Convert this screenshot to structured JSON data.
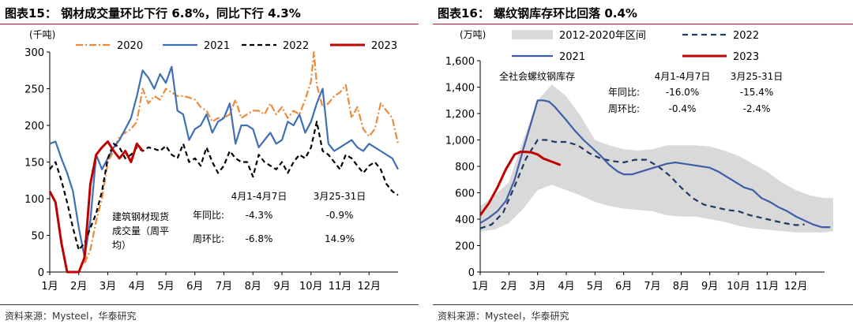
{
  "left": {
    "title": "图表15：  钢材成交量环比下行 6.8%，同比下行 4.3%",
    "source": "资料来源：Mysteel，华泰研究",
    "chart_data": {
      "type": "line",
      "unit": "(千吨)",
      "ylim": [
        0,
        300
      ],
      "yticks": [
        "0",
        "50",
        "100",
        "150",
        "200",
        "250",
        "300"
      ],
      "months": [
        "1月",
        "2月",
        "3月",
        "4月",
        "5月",
        "6月",
        "7月",
        "8月",
        "9月",
        "10月",
        "11月",
        "12月"
      ],
      "legend": [
        "2020",
        "2021",
        "2022",
        "2023"
      ],
      "series": [
        {
          "name": "2020",
          "color": "#ec8a3c",
          "dash": "9,3,2,3",
          "x": [
            2.2,
            2.4,
            2.6,
            2.8,
            3.0,
            3.2,
            3.4,
            3.6,
            3.8,
            4.0,
            4.2,
            4.4,
            4.6,
            4.8,
            5.0,
            5.2,
            5.4,
            5.6,
            5.8,
            6.0,
            6.2,
            6.4,
            6.6,
            6.8,
            7.0,
            7.2,
            7.4,
            7.6,
            7.8,
            8.0,
            8.2,
            8.4,
            8.6,
            8.8,
            9.0,
            9.2,
            9.4,
            9.6,
            9.8,
            10.0,
            10.1,
            10.2,
            10.4,
            10.6,
            10.8,
            11.0,
            11.2,
            11.4,
            11.6,
            11.8,
            12.0,
            12.2,
            12.4,
            12.6,
            12.8,
            13.0
          ],
          "y": [
            12,
            30,
            70,
            100,
            150,
            165,
            185,
            190,
            195,
            205,
            250,
            230,
            240,
            235,
            250,
            245,
            240,
            240,
            238,
            235,
            225,
            220,
            205,
            210,
            210,
            215,
            235,
            210,
            215,
            220,
            220,
            215,
            230,
            215,
            225,
            210,
            220,
            215,
            235,
            260,
            300,
            255,
            225,
            230,
            240,
            245,
            255,
            210,
            225,
            195,
            185,
            195,
            230,
            220,
            210,
            175
          ]
        },
        {
          "name": "2021",
          "color": "#3f6fb5",
          "dash": "",
          "x": [
            1.0,
            1.2,
            1.4,
            1.6,
            1.8,
            2.0,
            2.2,
            2.4,
            2.6,
            2.8,
            3.0,
            3.2,
            3.4,
            3.6,
            3.8,
            4.0,
            4.2,
            4.4,
            4.6,
            4.8,
            5.0,
            5.2,
            5.4,
            5.6,
            5.8,
            6.0,
            6.2,
            6.4,
            6.6,
            6.8,
            7.0,
            7.2,
            7.4,
            7.6,
            7.8,
            8.0,
            8.2,
            8.4,
            8.6,
            8.8,
            9.0,
            9.2,
            9.4,
            9.6,
            9.8,
            10.0,
            10.2,
            10.4,
            10.6,
            10.8,
            11.0,
            11.2,
            11.4,
            11.6,
            11.8,
            12.0,
            12.2,
            12.4,
            12.6,
            12.8,
            13.0
          ],
          "y": [
            175,
            178,
            155,
            135,
            110,
            60,
            20,
            70,
            160,
            140,
            155,
            170,
            180,
            195,
            210,
            240,
            275,
            265,
            250,
            270,
            258,
            280,
            220,
            215,
            180,
            195,
            200,
            215,
            190,
            205,
            210,
            230,
            175,
            200,
            200,
            195,
            170,
            180,
            190,
            175,
            180,
            205,
            200,
            215,
            190,
            205,
            230,
            250,
            175,
            165,
            170,
            175,
            180,
            170,
            165,
            175,
            170,
            165,
            160,
            155,
            140
          ]
        },
        {
          "name": "2022",
          "color": "#000000",
          "dash": "6,4",
          "x": [
            1.0,
            1.2,
            1.4,
            1.6,
            1.8,
            2.0,
            2.2,
            2.4,
            2.6,
            2.8,
            3.0,
            3.2,
            3.4,
            3.6,
            3.8,
            4.0,
            4.2,
            4.4,
            4.6,
            4.8,
            5.0,
            5.2,
            5.4,
            5.6,
            5.8,
            6.0,
            6.2,
            6.4,
            6.6,
            6.8,
            7.0,
            7.2,
            7.4,
            7.6,
            7.8,
            8.0,
            8.2,
            8.4,
            8.6,
            8.8,
            9.0,
            9.2,
            9.4,
            9.6,
            9.8,
            10.0,
            10.2,
            10.4,
            10.6,
            10.8,
            11.0,
            11.2,
            11.4,
            11.6,
            11.8,
            12.0,
            12.2,
            12.4,
            12.6,
            12.8,
            13.0
          ],
          "y": [
            140,
            150,
            125,
            95,
            60,
            30,
            40,
            60,
            80,
            110,
            155,
            175,
            170,
            155,
            160,
            170,
            165,
            170,
            168,
            165,
            172,
            160,
            155,
            175,
            150,
            155,
            145,
            170,
            150,
            135,
            145,
            165,
            155,
            150,
            150,
            130,
            160,
            150,
            145,
            140,
            150,
            135,
            150,
            160,
            155,
            170,
            205,
            165,
            160,
            150,
            140,
            160,
            155,
            145,
            135,
            145,
            150,
            140,
            120,
            110,
            105
          ]
        },
        {
          "name": "2023",
          "color": "#c00000",
          "dash": "",
          "x": [
            1.0,
            1.2,
            1.4,
            1.6,
            1.8,
            2.0,
            2.2,
            2.4,
            2.6,
            2.8,
            3.0,
            3.2,
            3.4,
            3.6,
            3.8,
            4.0,
            4.2
          ],
          "y": [
            110,
            95,
            40,
            0,
            0,
            0,
            20,
            120,
            160,
            170,
            178,
            165,
            155,
            165,
            150,
            175,
            165
          ]
        }
      ],
      "annotation": {
        "label": "建筑钢材现货\n成交量（周平\n均）",
        "col1_header": "4月1-4月7日",
        "col2_header": "3月25-31日",
        "rows": [
          {
            "label": "年同比:",
            "v1": "-4.3%",
            "v2": "-0.9%"
          },
          {
            "label": "周环比:",
            "v1": "-6.8%",
            "v2": "14.9%"
          }
        ]
      }
    }
  },
  "right": {
    "title": "图表16：  螺纹钢库存环比回落 0.4%",
    "source": "资料来源：Mysteel，华泰研究",
    "chart_data": {
      "type": "area+line",
      "unit": "(万吨)",
      "ylim": [
        0,
        1600
      ],
      "yticks": [
        "0",
        "200",
        "400",
        "600",
        "800",
        "1,000",
        "1,200",
        "1,400",
        "1,600"
      ],
      "months": [
        "1月",
        "2月",
        "3月",
        "4月",
        "5月",
        "6月",
        "7月",
        "8月",
        "9月",
        "10月",
        "11月",
        "12月"
      ],
      "legend": [
        "2012-2020年区间",
        "2022",
        "2021",
        "2023"
      ],
      "band": {
        "name": "2012-2020年区间",
        "color": "#d9d9d9",
        "x": [
          1.0,
          1.5,
          2.0,
          2.5,
          3.0,
          3.5,
          4.0,
          4.5,
          5.0,
          5.5,
          6.0,
          6.5,
          7.0,
          7.5,
          8.0,
          8.5,
          9.0,
          9.5,
          10.0,
          10.5,
          11.0,
          11.5,
          12.0,
          12.5,
          13.0,
          13.3
        ],
        "upper": [
          500,
          580,
          680,
          1000,
          1300,
          1420,
          1330,
          1180,
          1000,
          960,
          930,
          920,
          930,
          960,
          960,
          960,
          950,
          920,
          880,
          820,
          760,
          680,
          620,
          580,
          560,
          560
        ],
        "lower": [
          310,
          320,
          370,
          480,
          620,
          660,
          620,
          580,
          530,
          500,
          480,
          470,
          460,
          430,
          420,
          420,
          400,
          380,
          350,
          330,
          320,
          310,
          300,
          300,
          300,
          310
        ]
      },
      "series": [
        {
          "name": "2022",
          "color": "#1f3864",
          "dash": "7,5",
          "x": [
            1.0,
            1.4,
            1.8,
            2.2,
            2.6,
            3.0,
            3.3,
            3.6,
            4.0,
            4.4,
            4.8,
            5.2,
            5.6,
            6.0,
            6.4,
            6.8,
            7.2,
            7.6,
            8.0,
            8.4,
            8.8,
            9.2,
            9.6,
            10.0,
            10.4,
            10.8,
            11.2,
            11.6,
            12.0,
            12.3
          ],
          "y": [
            330,
            360,
            450,
            650,
            860,
            1000,
            1000,
            985,
            985,
            960,
            900,
            860,
            840,
            830,
            850,
            850,
            800,
            730,
            640,
            560,
            510,
            490,
            470,
            460,
            430,
            410,
            390,
            370,
            355,
            360
          ]
        },
        {
          "name": "2021",
          "color": "#3f5ea8",
          "dash": "",
          "x": [
            1.0,
            1.3,
            1.6,
            1.9,
            2.2,
            2.5,
            2.8,
            3.0,
            3.2,
            3.4,
            3.6,
            3.8,
            4.0,
            4.3,
            4.6,
            4.9,
            5.2,
            5.5,
            5.8,
            6.0,
            6.3,
            6.6,
            6.9,
            7.2,
            7.5,
            7.8,
            8.1,
            8.4,
            8.7,
            9.0,
            9.3,
            9.6,
            9.9,
            10.2,
            10.5,
            10.8,
            11.1,
            11.4,
            11.7,
            12.0,
            12.3,
            12.6,
            12.9,
            13.2
          ],
          "y": [
            370,
            410,
            460,
            540,
            700,
            930,
            1150,
            1300,
            1300,
            1290,
            1250,
            1200,
            1150,
            1070,
            1000,
            940,
            880,
            810,
            760,
            740,
            740,
            760,
            780,
            800,
            820,
            830,
            820,
            810,
            800,
            790,
            760,
            720,
            680,
            640,
            620,
            560,
            530,
            490,
            460,
            420,
            390,
            360,
            340,
            340
          ]
        },
        {
          "name": "2023",
          "color": "#c00000",
          "dash": "",
          "x": [
            1.0,
            1.3,
            1.6,
            1.9,
            2.2,
            2.4,
            2.6,
            2.8,
            3.0,
            3.2,
            3.5,
            3.8
          ],
          "y": [
            430,
            520,
            640,
            780,
            890,
            910,
            910,
            905,
            890,
            860,
            835,
            810
          ]
        }
      ],
      "annotation": {
        "label": "全社会螺纹钢库存",
        "col1_header": "4月1-4月7日",
        "col2_header": "3月25-31日",
        "rows": [
          {
            "label": "年同比:",
            "v1": "-16.0%",
            "v2": "-15.4%"
          },
          {
            "label": "周环比:",
            "v1": "-0.4%",
            "v2": "-2.4%"
          }
        ]
      }
    }
  }
}
